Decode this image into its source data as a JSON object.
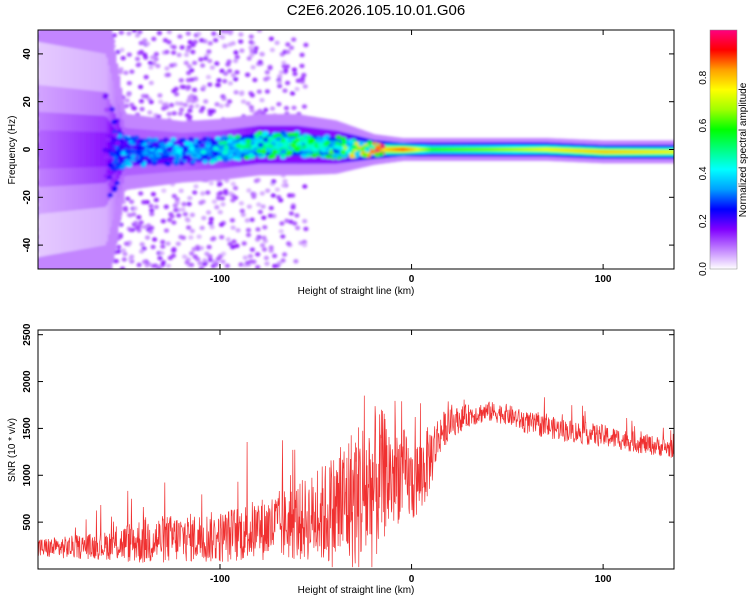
{
  "title": "C2E6.2026.105.10.01.G06",
  "colors": {
    "snr_line": "#f03030",
    "axis": "#000000",
    "colormap": [
      "#ffffff",
      "#c080ff",
      "#8000ff",
      "#0000ff",
      "#00a0ff",
      "#00ffff",
      "#00ff80",
      "#00ff00",
      "#a0ff00",
      "#ffff00",
      "#ffa000",
      "#ff0000",
      "#ff0080"
    ]
  },
  "chart_data": [
    {
      "type": "heatmap",
      "xlabel": "Height of straight line (km)",
      "ylabel": "Frequency (Hz)",
      "xlim": [
        -195,
        137
      ],
      "ylim": [
        -50,
        50
      ],
      "xticks": [
        -100,
        0,
        100
      ],
      "yticks": [
        -40,
        -20,
        0,
        20,
        40
      ],
      "colorbar": {
        "label": "Normalized spectral amplitude",
        "range": [
          0.0,
          1.0
        ],
        "ticks": [
          0.0,
          0.2,
          0.4,
          0.6,
          0.8
        ]
      },
      "ridge": [
        {
          "x": -195,
          "f": 0,
          "amp": 0.1,
          "spread": 45
        },
        {
          "x": -160,
          "f": 0,
          "amp": 0.15,
          "spread": 40
        },
        {
          "x": -150,
          "f": -1,
          "amp": 0.3,
          "spread": 10
        },
        {
          "x": -120,
          "f": -1,
          "amp": 0.3,
          "spread": 8
        },
        {
          "x": -100,
          "f": 0,
          "amp": 0.35,
          "spread": 8
        },
        {
          "x": -80,
          "f": 2,
          "amp": 0.45,
          "spread": 8
        },
        {
          "x": -60,
          "f": 2,
          "amp": 0.45,
          "spread": 8
        },
        {
          "x": -40,
          "f": 1,
          "amp": 0.45,
          "spread": 7
        },
        {
          "x": -20,
          "f": 0,
          "amp": 0.7,
          "spread": 4
        },
        {
          "x": -5,
          "f": 0,
          "amp": 0.9,
          "spread": 3
        },
        {
          "x": 10,
          "f": 0,
          "amp": 0.6,
          "spread": 3
        },
        {
          "x": 40,
          "f": 0,
          "amp": 0.65,
          "spread": 3
        },
        {
          "x": 70,
          "f": 0,
          "amp": 0.75,
          "spread": 3
        },
        {
          "x": 100,
          "f": -1,
          "amp": 0.8,
          "spread": 3
        },
        {
          "x": 137,
          "f": -1,
          "amp": 0.75,
          "spread": 3
        }
      ]
    },
    {
      "type": "line",
      "xlabel": "Height of straight line (km)",
      "ylabel": "SNR (10 * v/v)",
      "xlim": [
        -195,
        137
      ],
      "ylim": [
        0,
        2550
      ],
      "xticks": [
        -100,
        0,
        100
      ],
      "yticks": [
        500,
        1000,
        1500,
        2000,
        2500
      ],
      "envelope": {
        "x": [
          -195,
          -180,
          -160,
          -140,
          -120,
          -100,
          -80,
          -60,
          -50,
          -40,
          -30,
          -20,
          -15,
          -10,
          -5,
          0,
          5,
          10,
          15,
          20,
          30,
          40,
          50,
          60,
          80,
          100,
          120,
          137
        ],
        "mean": [
          220,
          230,
          250,
          300,
          330,
          340,
          420,
          500,
          560,
          620,
          760,
          850,
          1000,
          980,
          1050,
          900,
          1000,
          1200,
          1450,
          1550,
          1640,
          1680,
          1650,
          1560,
          1480,
          1420,
          1340,
          1280
        ],
        "noise": [
          110,
          120,
          150,
          260,
          260,
          280,
          330,
          420,
          480,
          650,
          800,
          900,
          700,
          600,
          500,
          420,
          450,
          350,
          220,
          160,
          120,
          110,
          110,
          120,
          120,
          120,
          110,
          100
        ]
      }
    }
  ]
}
